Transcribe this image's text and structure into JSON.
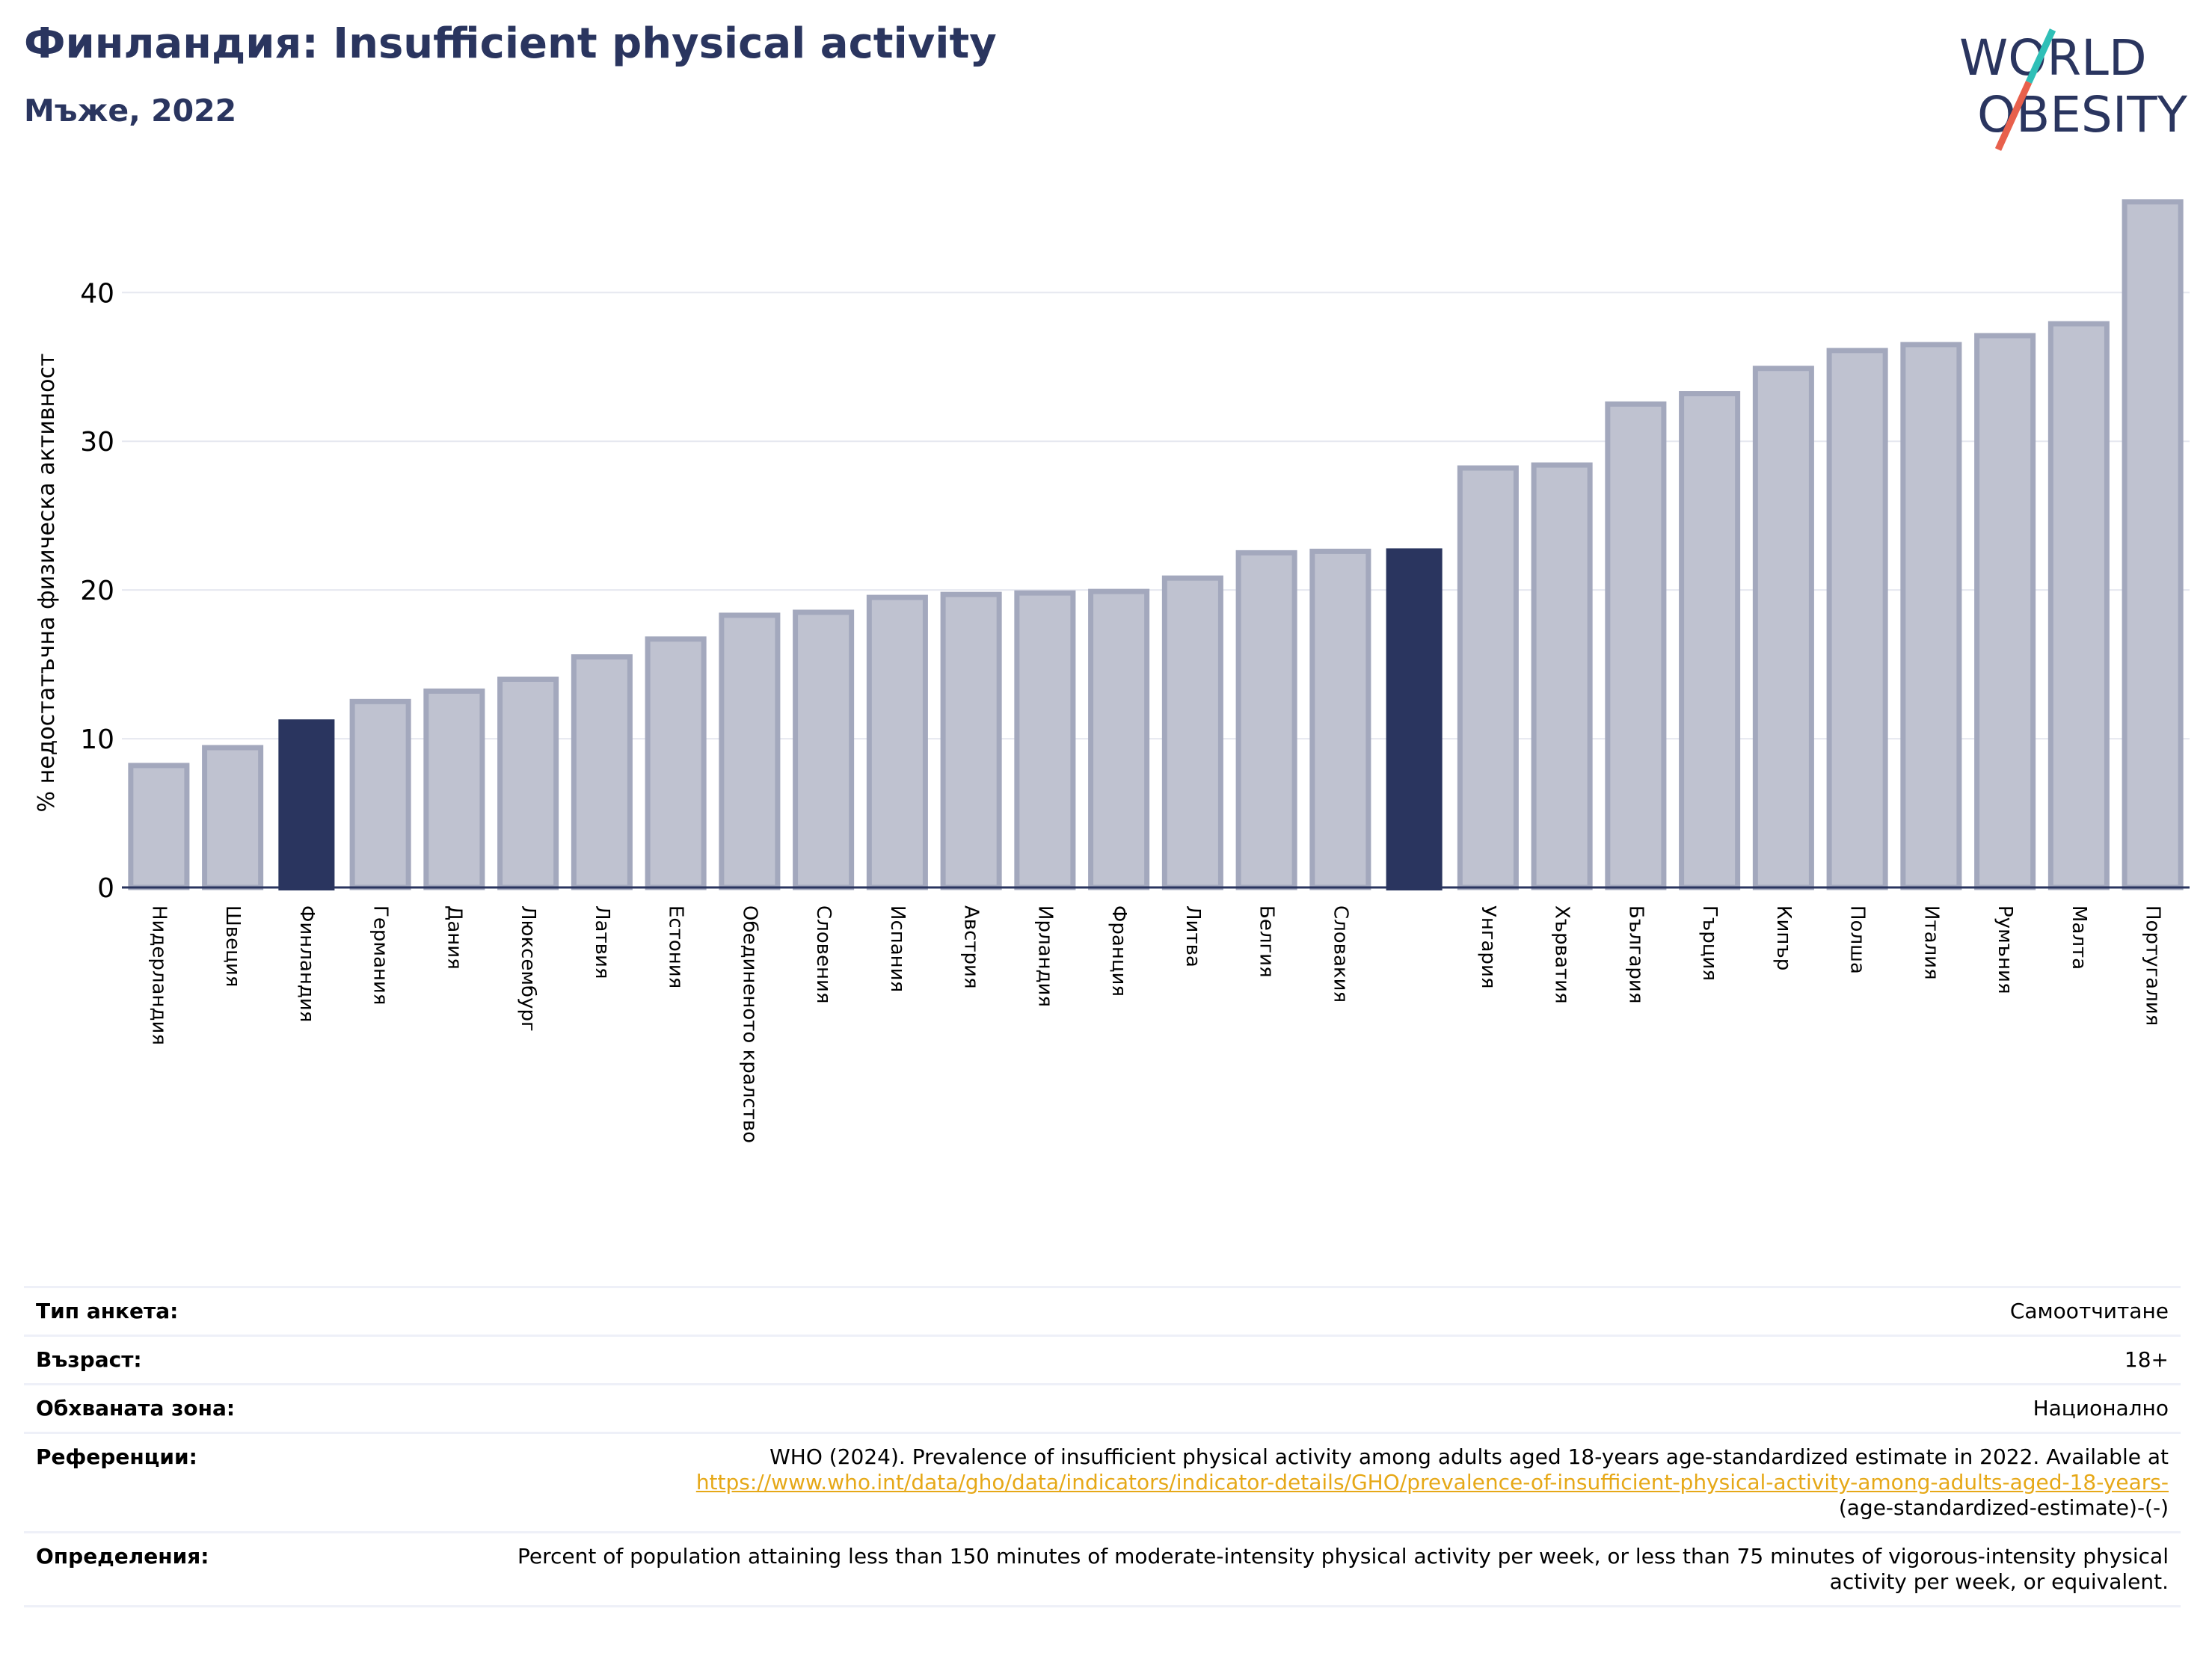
{
  "header": {
    "title": "Финландия: Insufficient physical activity",
    "subtitle": "Мъже, 2022"
  },
  "logo": {
    "line1": "WORLD",
    "line2": "OBESITY",
    "accent_colors": [
      "#2fbfb7",
      "#e8604c"
    ]
  },
  "colors": {
    "highlight_bar": "#2a355f",
    "default_bar": "#bfc2d0",
    "default_bar_edge": "#a3a8bd",
    "title": "#2a355f",
    "link": "#e6a817"
  },
  "chart_data": {
    "type": "bar",
    "ylabel": "% недостатъчна физическа активност",
    "ylim": [
      0,
      47
    ],
    "yticks": [
      0,
      10,
      20,
      30,
      40
    ],
    "grid": true,
    "bars": [
      {
        "label": "Нидерландия",
        "value": 8.2,
        "highlight": false
      },
      {
        "label": "Швеция",
        "value": 9.4,
        "highlight": false
      },
      {
        "label": "Финландия",
        "value": 11.3,
        "highlight": true
      },
      {
        "label": "Германия",
        "value": 12.5,
        "highlight": false
      },
      {
        "label": "Дания",
        "value": 13.2,
        "highlight": false
      },
      {
        "label": "Люксембург",
        "value": 14.0,
        "highlight": false
      },
      {
        "label": "Латвия",
        "value": 15.5,
        "highlight": false
      },
      {
        "label": "Естония",
        "value": 16.7,
        "highlight": false
      },
      {
        "label": "Обединеното кралство",
        "value": 18.3,
        "highlight": false
      },
      {
        "label": "Словения",
        "value": 18.5,
        "highlight": false
      },
      {
        "label": "Испания",
        "value": 19.5,
        "highlight": false
      },
      {
        "label": "Австрия",
        "value": 19.7,
        "highlight": false
      },
      {
        "label": "Ирландия",
        "value": 19.8,
        "highlight": false
      },
      {
        "label": "Франция",
        "value": 19.9,
        "highlight": false
      },
      {
        "label": "Литва",
        "value": 20.8,
        "highlight": false
      },
      {
        "label": "Белгия",
        "value": 22.5,
        "highlight": false
      },
      {
        "label": "Словакия",
        "value": 22.6,
        "highlight": false
      },
      {
        "label": "",
        "value": 22.8,
        "highlight": true
      },
      {
        "label": "Унгария",
        "value": 28.2,
        "highlight": false
      },
      {
        "label": "Хърватия",
        "value": 28.4,
        "highlight": false
      },
      {
        "label": "България",
        "value": 32.5,
        "highlight": false
      },
      {
        "label": "Гърция",
        "value": 33.2,
        "highlight": false
      },
      {
        "label": "Кипър",
        "value": 34.9,
        "highlight": false
      },
      {
        "label": "Полша",
        "value": 36.1,
        "highlight": false
      },
      {
        "label": "Италия",
        "value": 36.5,
        "highlight": false
      },
      {
        "label": "Румъния",
        "value": 37.1,
        "highlight": false
      },
      {
        "label": "Малта",
        "value": 37.9,
        "highlight": false
      },
      {
        "label": "Португалия",
        "value": 46.1,
        "highlight": false
      }
    ]
  },
  "info": [
    {
      "label": "Тип анкета:",
      "value": "Самоотчитане"
    },
    {
      "label": "Възраст:",
      "value": "18+"
    },
    {
      "label": "Обхваната зона:",
      "value": "Национално"
    },
    {
      "label": "Референции:",
      "value": "WHO (2024). Prevalence of insufficient physical activity among adults aged 18-years age-standardized estimate in 2022. Available at",
      "link": "https://www.who.int/data/gho/data/indicators/indicator-details/GHO/prevalence-of-insufficient-physical-activity-among-adults-aged-18-years-",
      "value_after": "(age-standardized-estimate)-(-)"
    },
    {
      "label": "Определения:",
      "value": "Percent of population attaining less than 150 minutes of moderate-intensity physical activity per week, or less than 75 minutes of vigorous-intensity physical activity per week, or equivalent."
    }
  ]
}
